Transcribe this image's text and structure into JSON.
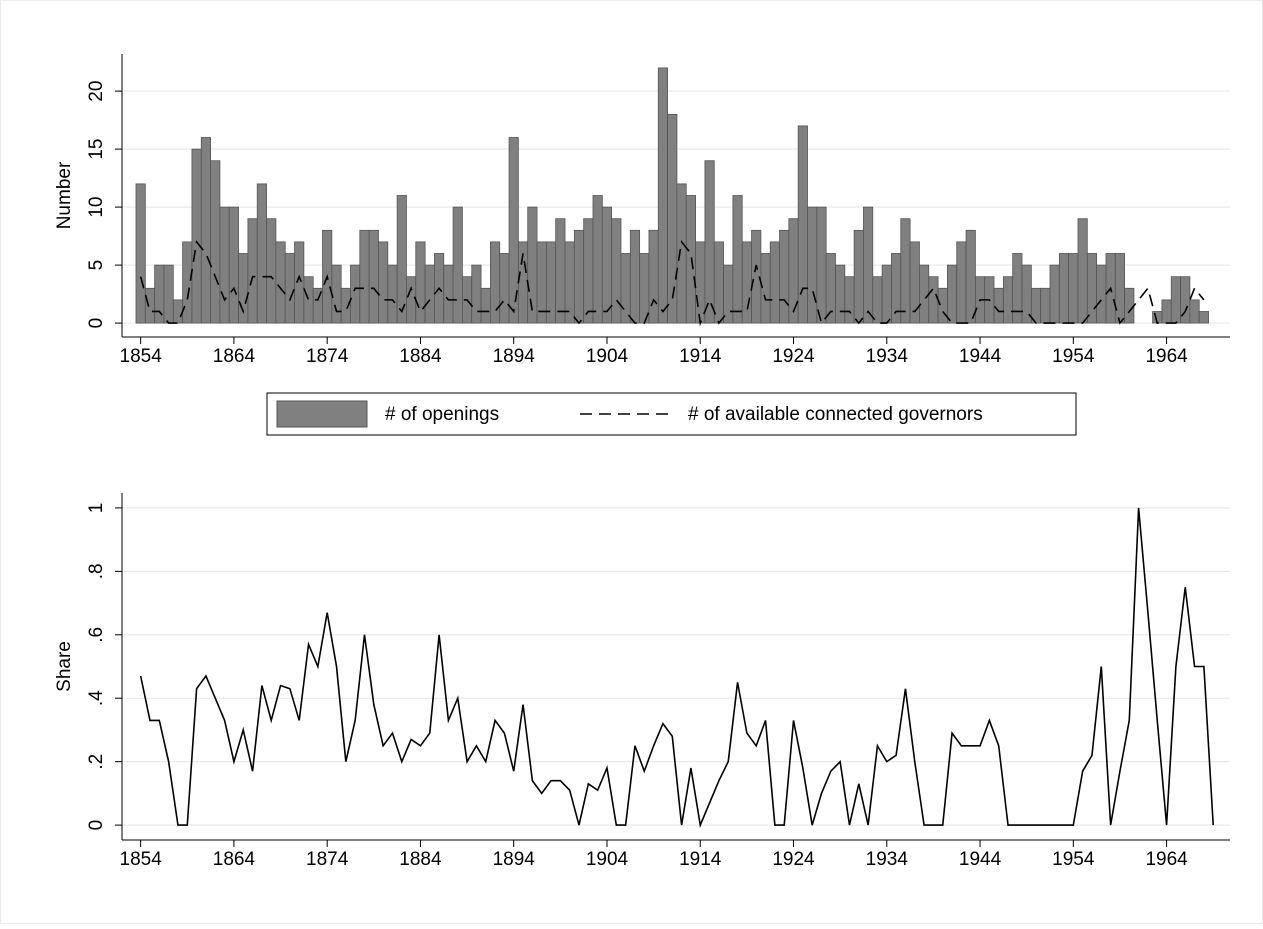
{
  "chart_data": [
    {
      "type": "combo",
      "ylabel": "Number",
      "grid": true,
      "legend": "bottom",
      "x": [
        1854,
        1855,
        1856,
        1857,
        1858,
        1859,
        1860,
        1861,
        1862,
        1863,
        1864,
        1865,
        1866,
        1867,
        1868,
        1869,
        1870,
        1871,
        1872,
        1873,
        1874,
        1875,
        1876,
        1877,
        1878,
        1879,
        1880,
        1881,
        1882,
        1883,
        1884,
        1885,
        1886,
        1887,
        1888,
        1889,
        1890,
        1891,
        1892,
        1893,
        1894,
        1895,
        1896,
        1897,
        1898,
        1899,
        1900,
        1901,
        1902,
        1903,
        1904,
        1905,
        1906,
        1907,
        1908,
        1909,
        1910,
        1911,
        1912,
        1913,
        1914,
        1915,
        1916,
        1917,
        1918,
        1919,
        1920,
        1921,
        1922,
        1923,
        1924,
        1925,
        1926,
        1927,
        1928,
        1929,
        1930,
        1931,
        1932,
        1933,
        1934,
        1935,
        1936,
        1937,
        1938,
        1939,
        1940,
        1941,
        1942,
        1943,
        1944,
        1945,
        1946,
        1947,
        1948,
        1949,
        1950,
        1951,
        1952,
        1953,
        1954,
        1955,
        1956,
        1957,
        1958,
        1959,
        1960,
        1961,
        1962,
        1963,
        1964,
        1965,
        1966,
        1967,
        1968
      ],
      "series": [
        {
          "name": "# of openings",
          "type": "bar",
          "color": "#808080",
          "values": [
            12,
            3,
            5,
            5,
            2,
            7,
            15,
            16,
            14,
            10,
            10,
            6,
            9,
            12,
            9,
            7,
            6,
            7,
            4,
            3,
            8,
            5,
            3,
            5,
            8,
            8,
            7,
            5,
            11,
            4,
            7,
            5,
            6,
            5,
            10,
            4,
            5,
            3,
            7,
            6,
            16,
            7,
            10,
            7,
            7,
            9,
            7,
            8,
            9,
            11,
            10,
            9,
            6,
            8,
            6,
            8,
            22,
            18,
            12,
            11,
            7,
            14,
            7,
            5,
            11,
            7,
            8,
            6,
            7,
            8,
            9,
            17,
            10,
            10,
            6,
            5,
            4,
            8,
            10,
            4,
            5,
            6,
            9,
            7,
            5,
            4,
            3,
            5,
            7,
            8,
            4,
            4,
            3,
            4,
            6,
            5,
            3,
            3,
            5,
            6,
            6,
            9,
            6,
            5,
            6,
            6,
            3,
            0,
            0,
            1,
            2,
            4,
            4,
            2,
            1
          ]
        },
        {
          "name": "# of available connected governors",
          "type": "line",
          "dashed": true,
          "color": "#000000",
          "values": [
            4,
            1,
            1,
            0,
            0,
            2,
            7,
            6,
            4,
            2,
            3,
            1,
            4,
            4,
            4,
            3,
            2,
            4,
            2,
            2,
            4,
            1,
            1,
            3,
            3,
            3,
            2,
            2,
            1,
            3,
            1,
            2,
            3,
            2,
            2,
            2,
            1,
            1,
            1,
            2,
            1,
            6,
            1,
            1,
            1,
            1,
            1,
            0,
            1,
            1,
            1,
            2,
            1,
            0,
            0,
            2,
            1,
            2,
            7,
            6,
            0,
            2,
            0,
            1,
            1,
            1,
            5,
            2,
            2,
            2,
            1,
            3,
            3,
            0,
            1,
            1,
            1,
            0,
            1,
            0,
            0,
            1,
            1,
            1,
            2,
            3,
            1,
            0,
            0,
            0,
            2,
            2,
            1,
            1,
            1,
            1,
            0,
            0,
            0,
            0,
            0,
            0,
            1,
            2,
            3,
            0,
            1,
            2,
            3,
            0,
            0,
            0,
            1,
            3,
            2
          ]
        }
      ],
      "xlim": [
        1852,
        1970.8
      ],
      "xticks": [
        1854,
        1864,
        1874,
        1884,
        1894,
        1904,
        1914,
        1924,
        1934,
        1944,
        1954,
        1964
      ],
      "ylim": [
        -1.2,
        23.2
      ],
      "yticks": [
        0,
        5,
        10,
        15,
        20
      ]
    },
    {
      "type": "line",
      "ylabel": "Share",
      "grid": true,
      "color": "#000000",
      "x": [
        1854,
        1855,
        1856,
        1857,
        1858,
        1859,
        1860,
        1861,
        1862,
        1863,
        1864,
        1865,
        1866,
        1867,
        1868,
        1869,
        1870,
        1871,
        1872,
        1873,
        1874,
        1875,
        1876,
        1877,
        1878,
        1879,
        1880,
        1881,
        1882,
        1883,
        1884,
        1885,
        1886,
        1887,
        1888,
        1889,
        1890,
        1891,
        1892,
        1893,
        1894,
        1895,
        1896,
        1897,
        1898,
        1899,
        1900,
        1901,
        1902,
        1903,
        1904,
        1905,
        1906,
        1907,
        1908,
        1909,
        1910,
        1911,
        1912,
        1913,
        1914,
        1915,
        1916,
        1917,
        1918,
        1919,
        1920,
        1921,
        1922,
        1923,
        1924,
        1925,
        1926,
        1927,
        1928,
        1929,
        1930,
        1931,
        1932,
        1933,
        1934,
        1935,
        1936,
        1937,
        1938,
        1939,
        1940,
        1941,
        1942,
        1943,
        1944,
        1945,
        1946,
        1947,
        1948,
        1949,
        1950,
        1951,
        1952,
        1953,
        1954,
        1955,
        1956,
        1957,
        1958,
        1959,
        1960,
        1961,
        1962,
        1963,
        1964,
        1965,
        1966,
        1967,
        1968,
        1969
      ],
      "values": [
        0.47,
        0.33,
        0.33,
        0.2,
        0,
        0,
        0.43,
        0.47,
        0.4,
        0.33,
        0.2,
        0.3,
        0.17,
        0.44,
        0.33,
        0.44,
        0.43,
        0.33,
        0.57,
        0.5,
        0.67,
        0.5,
        0.2,
        0.33,
        0.6,
        0.38,
        0.25,
        0.29,
        0.2,
        0.27,
        0.25,
        0.29,
        0.6,
        0.33,
        0.4,
        0.2,
        0.25,
        0.2,
        0.33,
        0.29,
        0.17,
        0.38,
        0.14,
        0.1,
        0.14,
        0.14,
        0.11,
        0,
        0.13,
        0.11,
        0.18,
        0,
        0,
        0.25,
        0.17,
        0.25,
        0.32,
        0.28,
        0,
        0.18,
        0,
        0.07,
        0.14,
        0.2,
        0.45,
        0.29,
        0.25,
        0.33,
        0,
        0,
        0.33,
        0.18,
        0,
        0.1,
        0.17,
        0.2,
        0,
        0.13,
        0,
        0.25,
        0.2,
        0.22,
        0.43,
        0.2,
        0,
        0,
        0,
        0.29,
        0.25,
        0.25,
        0.25,
        0.33,
        0.25,
        0,
        0,
        0,
        0,
        0,
        0,
        0,
        0,
        0.17,
        0.22,
        0.5,
        0,
        0.17,
        0.33,
        1,
        0.67,
        0.33,
        0,
        0.5,
        0.75,
        0.5,
        0.5,
        0
      ],
      "xlim": [
        1852,
        1970.8
      ],
      "xticks": [
        1854,
        1864,
        1874,
        1884,
        1894,
        1904,
        1914,
        1924,
        1934,
        1944,
        1954,
        1964
      ],
      "ylim": [
        -0.047,
        1.047
      ],
      "yticks": [
        0,
        {
          "value": 0.2,
          "label": ".2"
        },
        {
          "value": 0.4,
          "label": ".4"
        },
        {
          "value": 0.6,
          "label": ".6"
        },
        {
          "value": 0.8,
          "label": ".8"
        },
        {
          "value": 1,
          "label": "1"
        }
      ]
    }
  ]
}
